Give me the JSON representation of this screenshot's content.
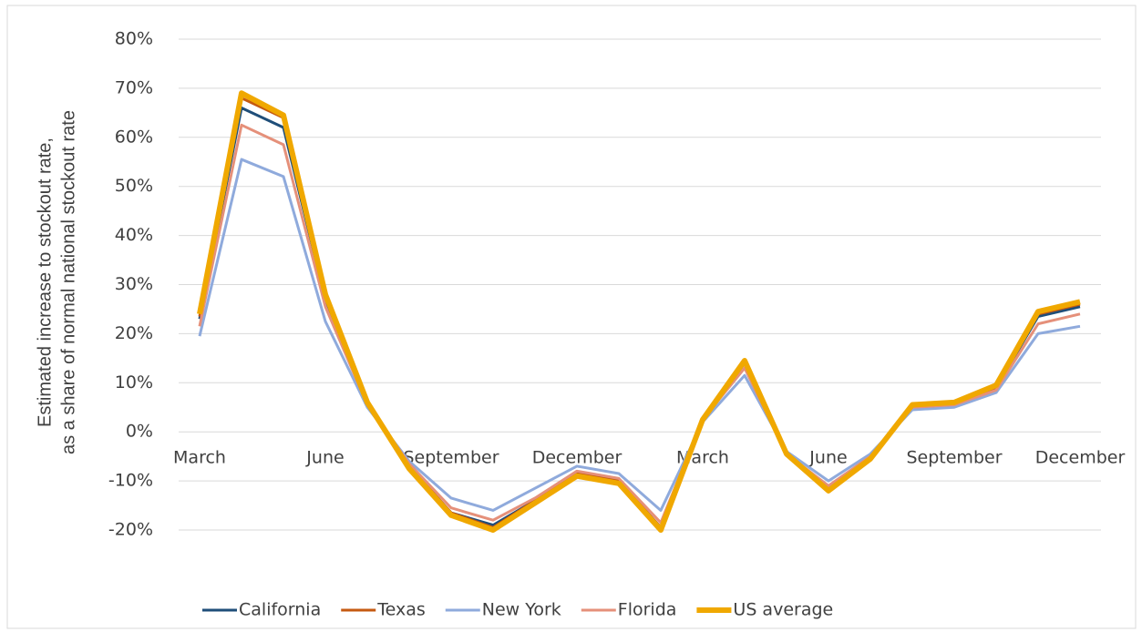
{
  "chart_data": {
    "type": "line",
    "y_label": [
      "Estimated increase to stockout rate,",
      "as a share of normal national stockout rate"
    ],
    "categories": [
      "March",
      null,
      null,
      "June",
      null,
      null,
      "September",
      null,
      null,
      "December",
      null,
      null,
      "March",
      null,
      null,
      "June",
      null,
      null,
      "September",
      null,
      null,
      "December"
    ],
    "series": [
      {
        "name": "California",
        "color": "#1f4e79",
        "width": 3,
        "values": [
          23,
          66,
          62,
          27,
          6,
          -7,
          -16.5,
          -19,
          -14,
          -8.5,
          -10,
          -19.5,
          2.5,
          14,
          -4.5,
          -11.5,
          -5.5,
          5,
          5.5,
          9,
          23.5,
          25.5
        ]
      },
      {
        "name": "Texas",
        "color": "#c55a11",
        "width": 3,
        "values": [
          23.5,
          68,
          64,
          27.5,
          6,
          -7,
          -16.5,
          -19.5,
          -14,
          -8.5,
          -10,
          -19.5,
          2.5,
          14,
          -4.5,
          -11.5,
          -5.5,
          5.5,
          5.5,
          9,
          24,
          26
        ]
      },
      {
        "name": "New York",
        "color": "#8faadc",
        "width": 3,
        "values": [
          19.5,
          55.5,
          52,
          22.5,
          5,
          -6,
          -13.5,
          -16,
          -11.5,
          -7,
          -8.5,
          -16,
          2,
          11.5,
          -4,
          -10,
          -4.5,
          4.5,
          5,
          8,
          20,
          21.5
        ]
      },
      {
        "name": "Florida",
        "color": "#e5907a",
        "width": 3,
        "values": [
          21.5,
          62.5,
          58.5,
          25.5,
          5.5,
          -6.5,
          -15.5,
          -18,
          -13.5,
          -8,
          -9.5,
          -18.5,
          2.5,
          13,
          -4.5,
          -11,
          -5,
          5,
          5.5,
          8.5,
          22,
          24
        ]
      },
      {
        "name": "US average",
        "color": "#f0a800",
        "width": 6,
        "values": [
          24,
          69,
          64.5,
          28,
          6,
          -7.5,
          -17,
          -20,
          -14.5,
          -9,
          -10.5,
          -20,
          2.5,
          14.5,
          -4.5,
          -12,
          -5.5,
          5.5,
          6,
          9.5,
          24.5,
          26.5
        ]
      }
    ],
    "ylim": [
      -20,
      80
    ],
    "yticks": [
      {
        "value": -20,
        "label": "-20%"
      },
      {
        "value": -10,
        "label": "-10%"
      },
      {
        "value": 0,
        "label": "0%"
      },
      {
        "value": 10,
        "label": "10%"
      },
      {
        "value": 20,
        "label": "20%"
      },
      {
        "value": 30,
        "label": "30%"
      },
      {
        "value": 40,
        "label": "40%"
      },
      {
        "value": 50,
        "label": "50%"
      },
      {
        "value": 60,
        "label": "60%"
      },
      {
        "value": 70,
        "label": "70%"
      },
      {
        "value": 80,
        "label": "80%"
      }
    ],
    "grid": true,
    "legend": "bottom"
  }
}
